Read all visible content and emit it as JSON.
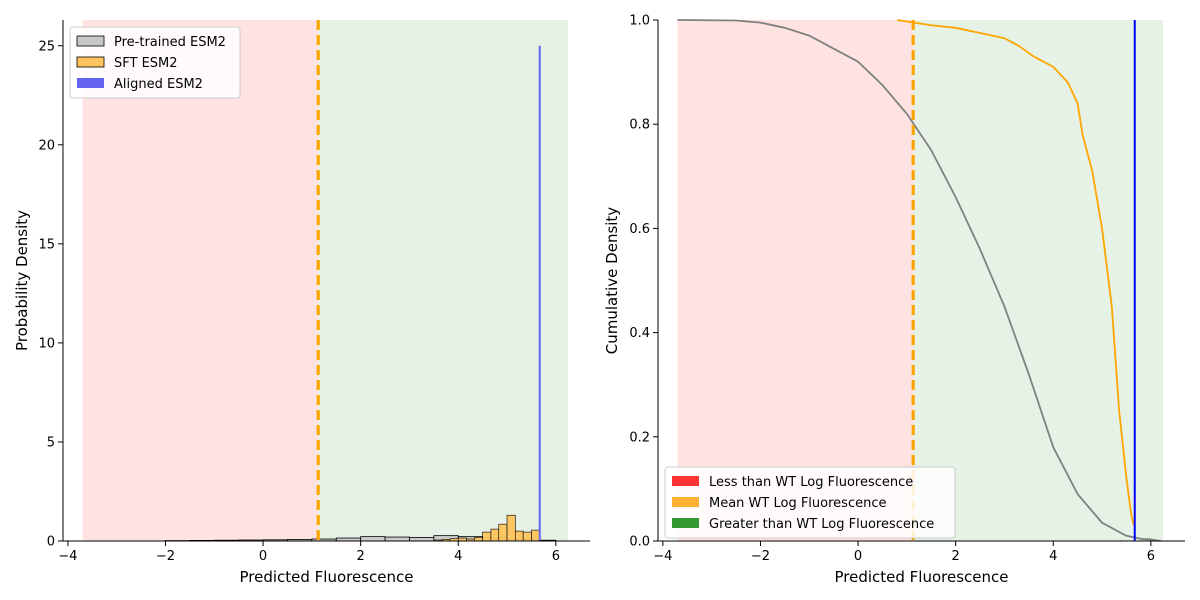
{
  "chart_data": [
    {
      "type": "bar",
      "panel": "left",
      "xlabel": "Predicted Fluorescence",
      "ylabel": "Probability Density",
      "xlim": [
        -4.1,
        6.7
      ],
      "ylim": [
        0,
        26.3
      ],
      "xticks": [
        "−4",
        "−2",
        "0",
        "2",
        "4",
        "6"
      ],
      "yticks": [
        "0",
        "5",
        "10",
        "15",
        "20",
        "25"
      ],
      "grid": false,
      "legend_position": "top-left",
      "regions": [
        {
          "from": -3.7,
          "to": 1.13,
          "color": "#ff9999"
        },
        {
          "from": 1.13,
          "to": 6.25,
          "color": "#a3cfa3"
        }
      ],
      "wt_mean_line": {
        "x": 1.13,
        "color": "#ffa500"
      },
      "series": [
        {
          "name": "Pre-trained ESM2",
          "color": "#c8c8c8",
          "bin_edges": [
            -2.0,
            -1.5,
            -1.0,
            -0.5,
            0.0,
            0.5,
            1.0,
            1.5,
            2.0,
            2.5,
            3.0,
            3.5,
            4.0,
            4.5,
            5.0,
            5.5,
            6.0
          ],
          "values": [
            0.02,
            0.03,
            0.04,
            0.05,
            0.06,
            0.08,
            0.1,
            0.15,
            0.22,
            0.2,
            0.18,
            0.27,
            0.22,
            0.18,
            0.1,
            0.04
          ]
        },
        {
          "name": "SFT ESM2",
          "color": "#ffc45c",
          "bin_edges": [
            3.5,
            3.67,
            3.83,
            4.0,
            4.17,
            4.33,
            4.5,
            4.67,
            4.83,
            5.0,
            5.17,
            5.33,
            5.5,
            5.67
          ],
          "values": [
            0.05,
            0.08,
            0.12,
            0.15,
            0.1,
            0.18,
            0.45,
            0.6,
            0.85,
            1.3,
            0.5,
            0.45,
            0.55
          ]
        },
        {
          "name": "Aligned ESM2",
          "color": "#6464f0",
          "x": 5.67,
          "value": 25
        }
      ]
    },
    {
      "type": "line",
      "panel": "right",
      "xlabel": "Predicted Fluorescence",
      "ylabel": "Cumulative Density",
      "xlim": [
        -4.1,
        6.7
      ],
      "ylim": [
        0,
        1
      ],
      "xticks": [
        "−4",
        "−2",
        "0",
        "2",
        "4",
        "6"
      ],
      "yticks": [
        "0.0",
        "0.2",
        "0.4",
        "0.6",
        "0.8",
        "1.0"
      ],
      "grid": false,
      "legend_position": "bottom-left",
      "legend": [
        {
          "label": "Less than WT Log Fluorescence",
          "color": "#ff3333"
        },
        {
          "label": "Mean WT Log Fluorescence",
          "color": "#ffb133"
        },
        {
          "label": "Greater than WT Log Fluorescence",
          "color": "#339933"
        }
      ],
      "regions": [
        {
          "from": -3.7,
          "to": 1.13,
          "color": "#ff9999"
        },
        {
          "from": 1.13,
          "to": 6.25,
          "color": "#a3cfa3"
        }
      ],
      "wt_mean_line": {
        "x": 1.13,
        "color": "#ffa500"
      },
      "series": [
        {
          "color": "#808080",
          "x": [
            -3.7,
            -2.5,
            -2.0,
            -1.5,
            -1.0,
            -0.5,
            0.0,
            0.5,
            1.0,
            1.5,
            2.0,
            2.5,
            3.0,
            3.5,
            4.0,
            4.5,
            5.0,
            5.5,
            5.8,
            6.0,
            6.2
          ],
          "y": [
            1.0,
            0.999,
            0.995,
            0.985,
            0.97,
            0.945,
            0.92,
            0.875,
            0.82,
            0.75,
            0.66,
            0.56,
            0.45,
            0.32,
            0.18,
            0.09,
            0.035,
            0.01,
            0.004,
            0.003,
            0.0
          ]
        },
        {
          "color": "#ffa500",
          "x": [
            0.8,
            1.15,
            1.5,
            2.0,
            2.5,
            3.0,
            3.3,
            3.6,
            4.0,
            4.3,
            4.5,
            4.6,
            4.8,
            5.0,
            5.2,
            5.35,
            5.5,
            5.6,
            5.65
          ],
          "y": [
            1.0,
            0.995,
            0.99,
            0.985,
            0.975,
            0.965,
            0.95,
            0.93,
            0.91,
            0.88,
            0.84,
            0.78,
            0.71,
            0.6,
            0.45,
            0.25,
            0.12,
            0.05,
            0.03
          ]
        },
        {
          "color": "#0000ff",
          "x": 5.67
        }
      ]
    }
  ]
}
